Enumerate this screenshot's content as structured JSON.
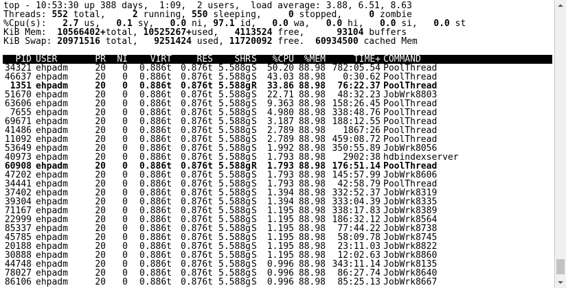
{
  "summary": [
    "top - 10:53:30 up 388 days,  1:09,  2 users,  load average: 3.88, 6.51, 8.63",
    "Threads:",
    "%Cpu(s):",
    "KiB Mem:",
    "KiB Swap:"
  ],
  "threads": {
    "total": "552",
    "running": "2",
    "sleeping": "550",
    "stopped": "0",
    "zombie": "0"
  },
  "cpu": {
    "us": "2.7",
    "sy": "0.1",
    "ni": "0.0",
    "id": "97.1",
    "wa": "0.0",
    "hi": "0.0",
    "si": "0.0",
    "st": "0.0"
  },
  "mem": {
    "total": "10566402+",
    "used": "10525267+",
    "free": "4113524",
    "buffers": "93104"
  },
  "swap": {
    "total": "20971516",
    "used": "9251424",
    "free": "11720092",
    "cached": "60934500"
  },
  "columns": [
    "PID",
    "USER",
    "PR",
    "NI",
    "VIRT",
    "RES",
    "SHR",
    "S",
    "%CPU",
    "%MEM",
    "TIME+",
    "COMMAND"
  ],
  "processes": [
    {
      "pid": "34321",
      "user": "ehpadm",
      "pr": "20",
      "ni": "0",
      "virt": "0.886t",
      "res": "0.876t",
      "shr": "5.588g",
      "s": "S",
      "cpu": "50.20",
      "mem": "88.98",
      "time": "782:05.54",
      "cmd": "PoolThread",
      "bold": false
    },
    {
      "pid": "46637",
      "user": "ehpadm",
      "pr": "20",
      "ni": "0",
      "virt": "0.886t",
      "res": "0.876t",
      "shr": "5.588g",
      "s": "S",
      "cpu": "43.03",
      "mem": "88.98",
      "time": "0:30.62",
      "cmd": "PoolThread",
      "bold": false
    },
    {
      "pid": "1351",
      "user": "ehpadm",
      "pr": "20",
      "ni": "0",
      "virt": "0.886t",
      "res": "0.876t",
      "shr": "5.588g",
      "s": "R",
      "cpu": "33.86",
      "mem": "88.98",
      "time": "76:22.37",
      "cmd": "PoolThread",
      "bold": true
    },
    {
      "pid": "51670",
      "user": "ehpadm",
      "pr": "20",
      "ni": "0",
      "virt": "0.886t",
      "res": "0.876t",
      "shr": "5.588g",
      "s": "S",
      "cpu": "22.71",
      "mem": "88.98",
      "time": "48:32.23",
      "cmd": "JobWrk8803",
      "bold": false
    },
    {
      "pid": "63606",
      "user": "ehpadm",
      "pr": "20",
      "ni": "0",
      "virt": "0.886t",
      "res": "0.876t",
      "shr": "5.588g",
      "s": "S",
      "cpu": "9.363",
      "mem": "88.98",
      "time": "158:26.45",
      "cmd": "PoolThread",
      "bold": false
    },
    {
      "pid": "7655",
      "user": "ehpadm",
      "pr": "20",
      "ni": "0",
      "virt": "0.886t",
      "res": "0.876t",
      "shr": "5.588g",
      "s": "S",
      "cpu": "4.980",
      "mem": "88.98",
      "time": "338:48.76",
      "cmd": "PoolThread",
      "bold": false
    },
    {
      "pid": "69671",
      "user": "ehpadm",
      "pr": "20",
      "ni": "0",
      "virt": "0.886t",
      "res": "0.876t",
      "shr": "5.588g",
      "s": "S",
      "cpu": "3.187",
      "mem": "88.98",
      "time": "188:12.55",
      "cmd": "PoolThread",
      "bold": false
    },
    {
      "pid": "41486",
      "user": "ehpadm",
      "pr": "20",
      "ni": "0",
      "virt": "0.886t",
      "res": "0.876t",
      "shr": "5.588g",
      "s": "S",
      "cpu": "2.789",
      "mem": "88.98",
      "time": "1867:26",
      "cmd": "PoolThread",
      "bold": false
    },
    {
      "pid": "11092",
      "user": "ehpadm",
      "pr": "20",
      "ni": "0",
      "virt": "0.886t",
      "res": "0.876t",
      "shr": "5.588g",
      "s": "S",
      "cpu": "2.789",
      "mem": "88.98",
      "time": "459:08.72",
      "cmd": "PoolThread",
      "bold": false
    },
    {
      "pid": "53649",
      "user": "ehpadm",
      "pr": "20",
      "ni": "0",
      "virt": "0.886t",
      "res": "0.876t",
      "shr": "5.588g",
      "s": "S",
      "cpu": "1.992",
      "mem": "88.98",
      "time": "350:55.89",
      "cmd": "JobWrk8056",
      "bold": false
    },
    {
      "pid": "40973",
      "user": "ehpadm",
      "pr": "20",
      "ni": "0",
      "virt": "0.886t",
      "res": "0.876t",
      "shr": "5.588g",
      "s": "S",
      "cpu": "1.793",
      "mem": "88.98",
      "time": "2902:38",
      "cmd": "hdbindexserver",
      "bold": false
    },
    {
      "pid": "60908",
      "user": "ehpadm",
      "pr": "20",
      "ni": "0",
      "virt": "0.886t",
      "res": "0.876t",
      "shr": "5.588g",
      "s": "R",
      "cpu": "1.793",
      "mem": "88.98",
      "time": "176:51.14",
      "cmd": "PoolThread",
      "bold": true
    },
    {
      "pid": "47202",
      "user": "ehpadm",
      "pr": "20",
      "ni": "0",
      "virt": "0.886t",
      "res": "0.876t",
      "shr": "5.588g",
      "s": "S",
      "cpu": "1.793",
      "mem": "88.98",
      "time": "145:57.99",
      "cmd": "JobWrk8606",
      "bold": false
    },
    {
      "pid": "34441",
      "user": "ehpadm",
      "pr": "20",
      "ni": "0",
      "virt": "0.886t",
      "res": "0.876t",
      "shr": "5.588g",
      "s": "S",
      "cpu": "1.793",
      "mem": "88.98",
      "time": "42:58.79",
      "cmd": "PoolThread",
      "bold": false
    },
    {
      "pid": "37402",
      "user": "ehpadm",
      "pr": "20",
      "ni": "0",
      "virt": "0.886t",
      "res": "0.876t",
      "shr": "5.588g",
      "s": "S",
      "cpu": "1.394",
      "mem": "88.98",
      "time": "332:52.37",
      "cmd": "JobWrk8319",
      "bold": false
    },
    {
      "pid": "39304",
      "user": "ehpadm",
      "pr": "20",
      "ni": "0",
      "virt": "0.886t",
      "res": "0.876t",
      "shr": "5.588g",
      "s": "S",
      "cpu": "1.394",
      "mem": "88.98",
      "time": "333:04.39",
      "cmd": "JobWrk8335",
      "bold": false
    },
    {
      "pid": "71167",
      "user": "ehpadm",
      "pr": "20",
      "ni": "0",
      "virt": "0.886t",
      "res": "0.876t",
      "shr": "5.588g",
      "s": "S",
      "cpu": "1.195",
      "mem": "88.98",
      "time": "338:17.83",
      "cmd": "JobWrk8389",
      "bold": false
    },
    {
      "pid": "22999",
      "user": "ehpadm",
      "pr": "20",
      "ni": "0",
      "virt": "0.886t",
      "res": "0.876t",
      "shr": "5.588g",
      "s": "S",
      "cpu": "1.195",
      "mem": "88.98",
      "time": "186:32.12",
      "cmd": "JobWrk8564",
      "bold": false
    },
    {
      "pid": "85337",
      "user": "ehpadm",
      "pr": "20",
      "ni": "0",
      "virt": "0.886t",
      "res": "0.876t",
      "shr": "5.588g",
      "s": "S",
      "cpu": "1.195",
      "mem": "88.98",
      "time": "77:44.22",
      "cmd": "JobWrk8738",
      "bold": false
    },
    {
      "pid": "45785",
      "user": "ehpadm",
      "pr": "20",
      "ni": "0",
      "virt": "0.886t",
      "res": "0.876t",
      "shr": "5.588g",
      "s": "S",
      "cpu": "1.195",
      "mem": "88.98",
      "time": "58:09.78",
      "cmd": "JobWrk8745",
      "bold": false
    },
    {
      "pid": "20188",
      "user": "ehpadm",
      "pr": "20",
      "ni": "0",
      "virt": "0.886t",
      "res": "0.876t",
      "shr": "5.588g",
      "s": "S",
      "cpu": "1.195",
      "mem": "88.98",
      "time": "23:11.03",
      "cmd": "JobWrk8822",
      "bold": false
    },
    {
      "pid": "30888",
      "user": "ehpadm",
      "pr": "20",
      "ni": "0",
      "virt": "0.886t",
      "res": "0.876t",
      "shr": "5.588g",
      "s": "S",
      "cpu": "1.195",
      "mem": "88.98",
      "time": "12:02.63",
      "cmd": "JobWrk8860",
      "bold": false
    },
    {
      "pid": "44748",
      "user": "ehpadm",
      "pr": "20",
      "ni": "0",
      "virt": "0.886t",
      "res": "0.876t",
      "shr": "5.588g",
      "s": "S",
      "cpu": "0.996",
      "mem": "88.98",
      "time": "343:11.14",
      "cmd": "JobWrk8135",
      "bold": false
    },
    {
      "pid": "78027",
      "user": "ehpadm",
      "pr": "20",
      "ni": "0",
      "virt": "0.886t",
      "res": "0.876t",
      "shr": "5.588g",
      "s": "S",
      "cpu": "0.996",
      "mem": "88.98",
      "time": "86:27.74",
      "cmd": "JobWrk8640",
      "bold": false
    },
    {
      "pid": "86106",
      "user": "ehpadm",
      "pr": "20",
      "ni": "0",
      "virt": "0.886t",
      "res": "0.876t",
      "shr": "5.588g",
      "s": "S",
      "cpu": "0.996",
      "mem": "88.98",
      "time": "85:25.13",
      "cmd": "JobWrk8667",
      "bold": false
    }
  ]
}
